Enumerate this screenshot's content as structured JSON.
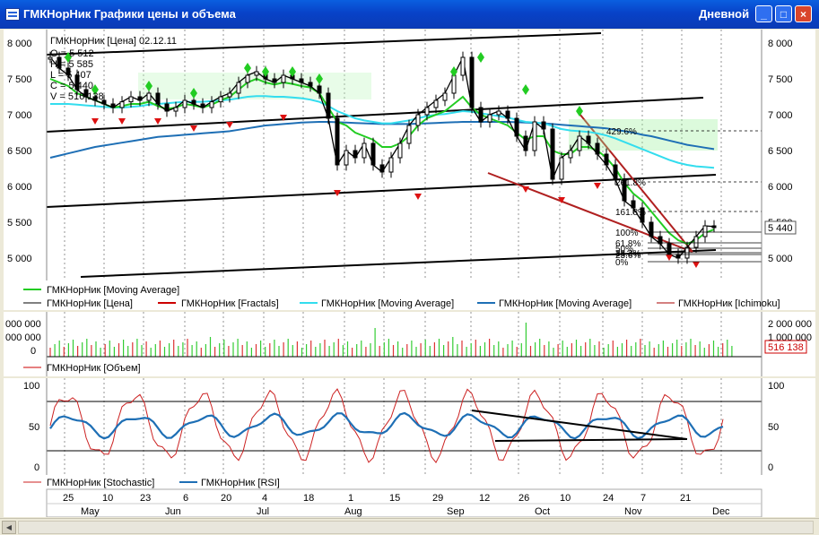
{
  "window": {
    "title": "ГМКНорНик Графики цены и объема",
    "timeframe": "Дневной",
    "buttons": {
      "minimize": "_",
      "maximize": "□",
      "close": "×"
    }
  },
  "price_panel": {
    "header": {
      "series": "ГМКНорНик [Цена] 02.12.11",
      "open": "O = 5 512",
      "high": "H = 5 585",
      "low": "L = 5 407",
      "close": "C = 5 440",
      "volume": "V = 516 138"
    },
    "y_ticks": [
      "8 000",
      "7 500",
      "7 000",
      "6 500",
      "6 000",
      "5 500",
      "5 000"
    ],
    "current_price": "5 440",
    "fib_levels": [
      "429.6%",
      "261.8%",
      "161.8%",
      "100%",
      "61.8%",
      "50%",
      "38.2%",
      "23.6%",
      "0%"
    ],
    "legend": [
      {
        "label": "ГМКНорНик [Moving Average]",
        "color": "#22CC22"
      },
      {
        "label": "ГМКНорНик [Цена]",
        "color": "#000000"
      },
      {
        "label": "ГМКНорНик [Fractals]",
        "color": "#CC0000"
      },
      {
        "label": "ГМКНорНик [Moving Average]",
        "color": "#33DDEE"
      },
      {
        "label": "ГМКНорНик [Moving Average]",
        "color": "#1E6FB5"
      },
      {
        "label": "ГМКНорНик [Ichimoku]",
        "color": "#AA0000"
      }
    ]
  },
  "volume_panel": {
    "y_ticks_left": [
      "000 000",
      "000 000",
      "0"
    ],
    "y_ticks_right": [
      "2 000 000",
      "1 000 000"
    ],
    "last_volume": "516 138",
    "legend": [
      {
        "label": "ГМКНорНик [Объем]",
        "color": "#CC0000"
      }
    ]
  },
  "osc_panel": {
    "y_ticks": [
      "100",
      "50",
      "0"
    ],
    "legend": [
      {
        "label": "ГМКНорНик [Stochastic]",
        "color": "#CC2222"
      },
      {
        "label": "ГМКНорНик [RSI]",
        "color": "#1E6FB5"
      }
    ]
  },
  "date_axis": {
    "days": [
      "25",
      "10",
      "23",
      "6",
      "20",
      "4",
      "18",
      "1",
      "15",
      "29",
      "12",
      "26",
      "10",
      "24",
      "7",
      "21"
    ],
    "months": [
      "May",
      "Jun",
      "Jul",
      "Aug",
      "Sep",
      "Oct",
      "Nov",
      "Dec"
    ]
  },
  "chart_data": {
    "type": "line",
    "title": "ГМКНорНик [Цена] 02.12.11",
    "ylim": [
      4700,
      8200
    ],
    "x": [
      0,
      10,
      20,
      30,
      40,
      50,
      60,
      70,
      80,
      90,
      100,
      110,
      120,
      130,
      140,
      150,
      160,
      170,
      180,
      190,
      200,
      210,
      220,
      230,
      240,
      250,
      260,
      270,
      280,
      290,
      300,
      310,
      320,
      330,
      340,
      350,
      360,
      370,
      380,
      390,
      400,
      410,
      420,
      430,
      440,
      450,
      460,
      470,
      480,
      490,
      500,
      510,
      520,
      530,
      540,
      550,
      560,
      570,
      580,
      590,
      600,
      610,
      620,
      630,
      640,
      650,
      660,
      670,
      680,
      690,
      700,
      710,
      720,
      730,
      740
    ],
    "series": [
      {
        "name": "ГМКНорНик [Цена]",
        "values": [
          7800,
          7650,
          7550,
          7350,
          7250,
          7200,
          7150,
          7100,
          7180,
          7250,
          7200,
          7300,
          7150,
          7050,
          7100,
          7200,
          7150,
          7100,
          7180,
          7250,
          7300,
          7450,
          7550,
          7600,
          7500,
          7450,
          7550,
          7500,
          7450,
          7400,
          7300,
          6950,
          6300,
          6500,
          6400,
          6600,
          6300,
          6200,
          6400,
          6600,
          6850,
          7000,
          7100,
          7200,
          7300,
          7550,
          7800,
          7100,
          6900,
          7000,
          7050,
          6950,
          6700,
          6500,
          6900,
          6800,
          6100,
          6400,
          6500,
          6700,
          6600,
          6450,
          6300,
          6100,
          5800,
          5700,
          5500,
          5300,
          5200,
          5050,
          5000,
          5150,
          5300,
          5450,
          5440
        ]
      },
      {
        "name": "ГМКНорНик [Moving Average]",
        "values": [
          7500,
          7450,
          7400,
          7300,
          7250,
          7200,
          7150,
          7100,
          7120,
          7150,
          7150,
          7180,
          7120,
          7080,
          7100,
          7150,
          7130,
          7100,
          7140,
          7200,
          7250,
          7350,
          7450,
          7500,
          7450,
          7420,
          7450,
          7430,
          7400,
          7380,
          7300,
          7100,
          6900,
          6850,
          6750,
          6700,
          6650,
          6550,
          6550,
          6600,
          6700,
          6850,
          6950,
          7000,
          7050,
          7150,
          7250,
          7100,
          7000,
          6950,
          6900,
          6850,
          6750,
          6650,
          6700,
          6700,
          6500,
          6450,
          6450,
          6550,
          6550,
          6500,
          6400,
          6250,
          6050,
          5900,
          5800,
          5650,
          5500,
          5350,
          5250,
          5200,
          5250,
          5350,
          5400
        ]
      },
      {
        "name": "ГМКНорНик [Moving Average]",
        "values": [
          7150,
          7150,
          7150,
          7140,
          7130,
          7120,
          7110,
          7100,
          7100,
          7110,
          7120,
          7140,
          7150,
          7160,
          7170,
          7180,
          7180,
          7180,
          7190,
          7200,
          7210,
          7230,
          7250,
          7260,
          7260,
          7250,
          7250,
          7240,
          7230,
          7210,
          7180,
          7120,
          7050,
          7000,
          6950,
          6920,
          6900,
          6880,
          6880,
          6900,
          6920,
          6950,
          6980,
          7000,
          7010,
          7030,
          7050,
          7040,
          7020,
          7000,
          6980,
          6960,
          6930,
          6900,
          6890,
          6880,
          6840,
          6800,
          6780,
          6770,
          6760,
          6740,
          6710,
          6670,
          6620,
          6570,
          6520,
          6470,
          6420,
          6370,
          6330,
          6300,
          6280,
          6270,
          6260
        ]
      },
      {
        "name": "ГМКНорНик [Moving Average]",
        "values": [
          6400,
          6430,
          6460,
          6490,
          6520,
          6550,
          6570,
          6590,
          6610,
          6630,
          6650,
          6670,
          6690,
          6700,
          6710,
          6720,
          6730,
          6740,
          6750,
          6760,
          6770,
          6790,
          6810,
          6830,
          6850,
          6860,
          6870,
          6880,
          6890,
          6895,
          6900,
          6900,
          6895,
          6890,
          6885,
          6880,
          6875,
          6870,
          6870,
          6870,
          6870,
          6875,
          6880,
          6885,
          6890,
          6895,
          6900,
          6900,
          6900,
          6900,
          6900,
          6900,
          6895,
          6890,
          6885,
          6880,
          6870,
          6860,
          6850,
          6840,
          6830,
          6820,
          6810,
          6790,
          6770,
          6750,
          6720,
          6700,
          6670,
          6640,
          6610,
          6580,
          6560,
          6540,
          6520
        ]
      }
    ]
  }
}
